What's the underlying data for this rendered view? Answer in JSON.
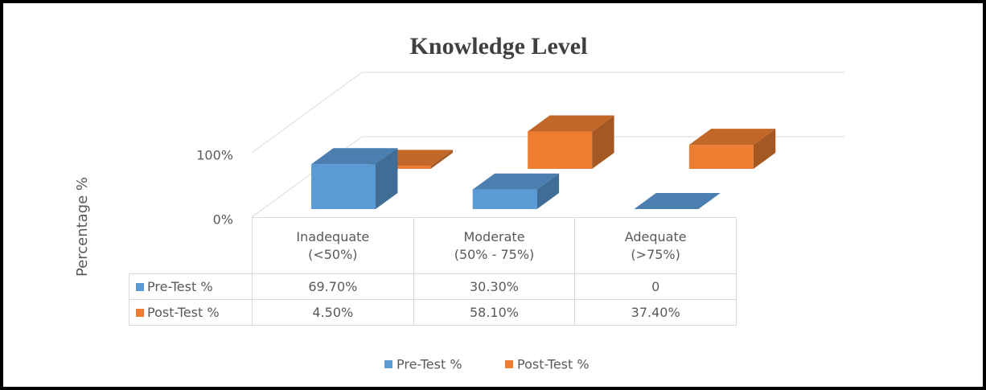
{
  "chart_data": {
    "type": "bar3d",
    "title": "Knowledge Level",
    "y_label": "Percentage %",
    "categories": [
      "Inadequate\n(<50%)",
      "Moderate\n(50% - 75%)",
      "Adequate\n(>75%)"
    ],
    "series": [
      {
        "name": "Pre-Test %",
        "color": "#5b9bd5",
        "values": [
          69.7,
          30.3,
          0
        ],
        "value_labels": [
          "69.70%",
          "30.30%",
          "0"
        ]
      },
      {
        "name": "Post-Test %",
        "color": "#ed7d31",
        "values": [
          4.5,
          58.1,
          37.4
        ],
        "value_labels": [
          "4.50%",
          "58.10%",
          "37.40%"
        ]
      }
    ],
    "ylim": [
      0,
      100
    ],
    "yticks": [
      {
        "value": 0,
        "label": "0%"
      },
      {
        "value": 100,
        "label": "100%"
      }
    ],
    "grid": true,
    "legend": "bottom"
  }
}
